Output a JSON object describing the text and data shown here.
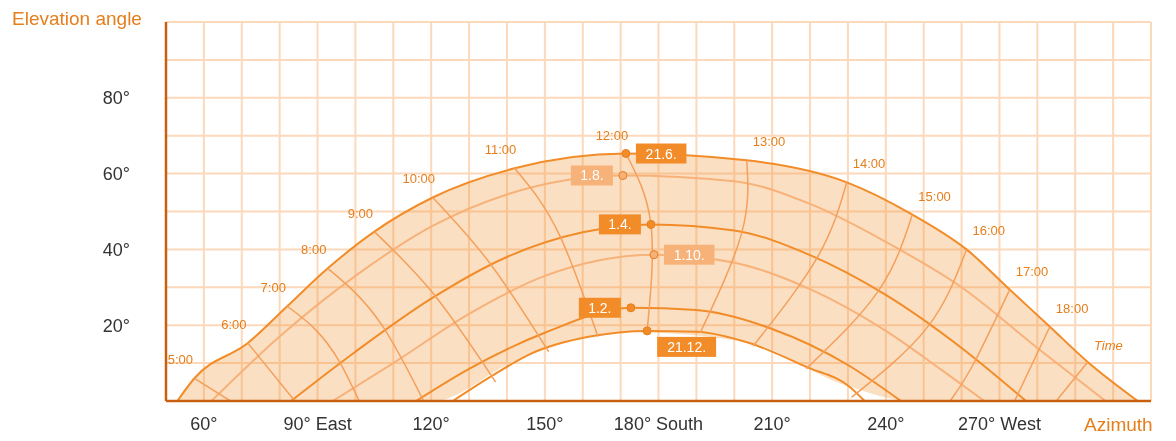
{
  "chart_data": {
    "type": "line",
    "xlabel": "Azimuth",
    "ylabel": "Elevation angle",
    "xlim": [
      50,
      310
    ],
    "ylim": [
      0,
      100
    ],
    "xticks": [
      {
        "value": 50,
        "label": null
      },
      {
        "value": 60,
        "label": "60°"
      },
      {
        "value": 70,
        "label": null
      },
      {
        "value": 80,
        "label": null
      },
      {
        "value": 90,
        "label": "90° East"
      },
      {
        "value": 100,
        "label": null
      },
      {
        "value": 110,
        "label": null
      },
      {
        "value": 120,
        "label": "120°"
      },
      {
        "value": 130,
        "label": null
      },
      {
        "value": 140,
        "label": null
      },
      {
        "value": 150,
        "label": "150°"
      },
      {
        "value": 160,
        "label": null
      },
      {
        "value": 170,
        "label": null
      },
      {
        "value": 180,
        "label": "180° South"
      },
      {
        "value": 190,
        "label": null
      },
      {
        "value": 200,
        "label": null
      },
      {
        "value": 210,
        "label": "210°"
      },
      {
        "value": 220,
        "label": null
      },
      {
        "value": 230,
        "label": null
      },
      {
        "value": 240,
        "label": "240°"
      },
      {
        "value": 250,
        "label": null
      },
      {
        "value": 260,
        "label": null
      },
      {
        "value": 270,
        "label": "270° West"
      },
      {
        "value": 280,
        "label": null
      },
      {
        "value": 290,
        "label": null
      },
      {
        "value": 300,
        "label": null
      },
      {
        "value": 310,
        "label": null
      }
    ],
    "yticks": [
      {
        "value": 10,
        "label": null
      },
      {
        "value": 20,
        "label": "20°"
      },
      {
        "value": 30,
        "label": null
      },
      {
        "value": 40,
        "label": "40°"
      },
      {
        "value": 50,
        "label": null
      },
      {
        "value": 60,
        "label": "60°"
      },
      {
        "value": 70,
        "label": null
      },
      {
        "value": 80,
        "label": "80°"
      },
      {
        "value": 90,
        "label": null
      },
      {
        "value": 100,
        "label": null
      }
    ],
    "grid": true,
    "series": [
      {
        "name": "21.6.",
        "color": "#f28c28",
        "x": [
          53,
          57.5,
          71.6,
          82,
          92.7,
          105,
          120.4,
          142,
          171.4,
          203.3,
          229.7,
          247,
          261.3,
          272.7,
          283.3,
          293.3,
          306.5
        ],
        "values": [
          0,
          6,
          15.3,
          25,
          35,
          44.7,
          53.7,
          61.4,
          65.3,
          63.5,
          57.7,
          49.2,
          40,
          29.4,
          19.6,
          10.3,
          0
        ],
        "lower": [
          0,
          0,
          0,
          0,
          0,
          0,
          0,
          10.5,
          18.2,
          15.5,
          4,
          0,
          0,
          0,
          0,
          0,
          0
        ],
        "upper": [
          0,
          6,
          15.3,
          25,
          35,
          44.7,
          53.7,
          61.4,
          65.3,
          63.5,
          57.7,
          49.2,
          40,
          29.4,
          19.6,
          10.3,
          0
        ]
      },
      {
        "name": "1.8.",
        "color": "#f7b27a",
        "x": [
          62,
          80,
          100,
          120,
          140,
          170.6,
          200,
          220,
          240,
          260,
          280,
          298
        ],
        "values": [
          0,
          17,
          33,
          46,
          54.5,
          59.5,
          58,
          52,
          42,
          30,
          14,
          0
        ]
      },
      {
        "name": "1.4.",
        "color": "#f28c28",
        "x": [
          83,
          100,
          120,
          140,
          160,
          178,
          200,
          220,
          240,
          260,
          277
        ],
        "values": [
          0,
          13,
          27,
          38,
          44.5,
          46.6,
          45,
          38.5,
          28,
          14,
          0
        ]
      },
      {
        "name": "1.10.",
        "color": "#f7b27a",
        "x": [
          94,
          110,
          130,
          150,
          178.8,
          200,
          220,
          240,
          255,
          266
        ],
        "values": [
          0,
          10,
          23,
          33,
          38.6,
          36.5,
          29.5,
          18.5,
          8,
          0
        ]
      },
      {
        "name": "1.2.",
        "color": "#f28c28",
        "x": [
          116,
          130,
          150,
          172.7,
          190,
          210,
          230,
          244
        ],
        "values": [
          0,
          8.5,
          18,
          24.6,
          24,
          19,
          9.5,
          0
        ]
      },
      {
        "name": "21.12.",
        "color": "#f28c28",
        "x": [
          125.7,
          135.5,
          146.8,
          161.9,
          177,
          190,
          204,
          219,
          230.5,
          234.4
        ],
        "values": [
          0,
          6.3,
          12.7,
          17,
          18.5,
          18.3,
          15.3,
          9,
          3.7,
          0
        ]
      },
      {
        "color": "#f5a05a",
        "type": "line",
        "x": [
          57.5,
          67
        ],
        "values": [
          6,
          0
        ]
      },
      {
        "color": "#f5a05a",
        "type": "line",
        "x": [
          71.6,
          84
        ],
        "values": [
          15.3,
          0
        ]
      },
      {
        "color": "#f5a05a",
        "type": "line",
        "x": [
          82,
          96,
          101
        ],
        "values": [
          25,
          10,
          0
        ]
      },
      {
        "color": "#f5a05a",
        "type": "line",
        "x": [
          92.7,
          107,
          118
        ],
        "values": [
          35,
          20,
          0
        ]
      },
      {
        "color": "#f5a05a",
        "type": "line",
        "x": [
          105,
          120,
          137
        ],
        "values": [
          44.7,
          29,
          5
        ]
      },
      {
        "color": "#f5a05a",
        "type": "line",
        "x": [
          120.4,
          135,
          151
        ],
        "values": [
          53.7,
          37,
          13
        ]
      },
      {
        "color": "#f5a05a",
        "type": "line",
        "x": [
          142,
          154,
          164
        ],
        "values": [
          61.4,
          43.5,
          17
        ]
      },
      {
        "color": "#f5a05a",
        "type": "line",
        "x": [
          171.4,
          178,
          177
        ],
        "values": [
          65.3,
          46.6,
          18.5
        ]
      },
      {
        "color": "#f5a05a",
        "type": "line",
        "x": [
          203.3,
          202,
          191
        ],
        "values": [
          63.5,
          44.5,
          18
        ]
      },
      {
        "color": "#f5a05a",
        "type": "line",
        "x": [
          229.7,
          222,
          205
        ],
        "values": [
          57.7,
          38,
          14.5
        ]
      },
      {
        "color": "#f5a05a",
        "type": "line",
        "x": [
          247,
          238,
          219
        ],
        "values": [
          49.2,
          29,
          8.5
        ]
      },
      {
        "color": "#f5a05a",
        "type": "line",
        "x": [
          261.3,
          251,
          231
        ],
        "values": [
          40,
          19.5,
          1
        ]
      },
      {
        "color": "#f5a05a",
        "type": "line",
        "x": [
          272.7,
          263,
          257
        ],
        "values": [
          29.4,
          9.5,
          0
        ]
      },
      {
        "color": "#f5a05a",
        "type": "line",
        "x": [
          283.3,
          274
        ],
        "values": [
          19.6,
          0
        ]
      },
      {
        "color": "#f5a05a",
        "type": "line",
        "x": [
          293.3,
          285
        ],
        "values": [
          10.3,
          0
        ]
      }
    ],
    "annotations": [
      {
        "text": "5:00",
        "x": 57.5,
        "y": 6
      },
      {
        "text": "6:00",
        "x": 71.6,
        "y": 15.3
      },
      {
        "text": "7:00",
        "x": 82,
        "y": 25
      },
      {
        "text": "8:00",
        "x": 92.7,
        "y": 35
      },
      {
        "text": "9:00",
        "x": 105,
        "y": 44.7
      },
      {
        "text": "10:00",
        "x": 120.4,
        "y": 53.7
      },
      {
        "text": "11:00",
        "x": 142,
        "y": 61.4
      },
      {
        "text": "12:00",
        "x": 171.4,
        "y": 65.3
      },
      {
        "text": "13:00",
        "x": 203.3,
        "y": 63.5
      },
      {
        "text": "14:00",
        "x": 229.7,
        "y": 57.7
      },
      {
        "text": "15:00",
        "x": 247,
        "y": 49.2
      },
      {
        "text": "16:00",
        "x": 261.3,
        "y": 40
      },
      {
        "text": "17:00",
        "x": 272.7,
        "y": 29.4
      },
      {
        "text": "18:00",
        "x": 283.3,
        "y": 19.6
      },
      "Time"
    ]
  }
}
